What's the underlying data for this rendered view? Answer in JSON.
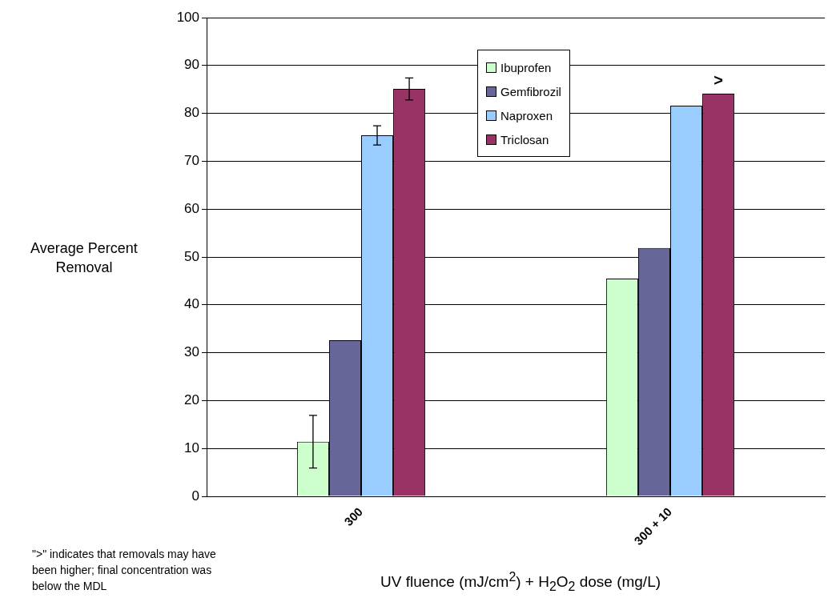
{
  "chart_data": {
    "type": "bar",
    "xlabel": "UV fluence (mJ/cm$^{2}$) + H$_{2}$O$_{2}$ dose (mg/L)",
    "ylabel": "Average Percent Removal",
    "categories": [
      "300",
      "300 + 10"
    ],
    "series": [
      {
        "name": "Ibuprofen",
        "color": "#ccffcc",
        "values": [
          11.4,
          45.5
        ],
        "errors": [
          5.5,
          null
        ]
      },
      {
        "name": "Gemfibrozil",
        "color": "#666699",
        "values": [
          32.6,
          51.9
        ],
        "errors": [
          null,
          null
        ]
      },
      {
        "name": "Naproxen",
        "color": "#99ccff",
        "values": [
          75.4,
          81.6
        ],
        "errors": [
          2,
          null
        ]
      },
      {
        "name": "Triclosan",
        "color": "#993366",
        "values": [
          85.1,
          84.1
        ],
        "errors": [
          2.3,
          null
        ]
      }
    ],
    "ylim": [
      0,
      100
    ],
    "yticks": [
      0,
      10,
      20,
      30,
      40,
      50,
      60,
      70,
      80,
      90,
      100
    ],
    "grid": "y",
    "legend": "top right",
    "annotations": [
      ">",
      "\">\"  indicates that removals may have been higher; final concentration was below the MDL"
    ]
  }
}
